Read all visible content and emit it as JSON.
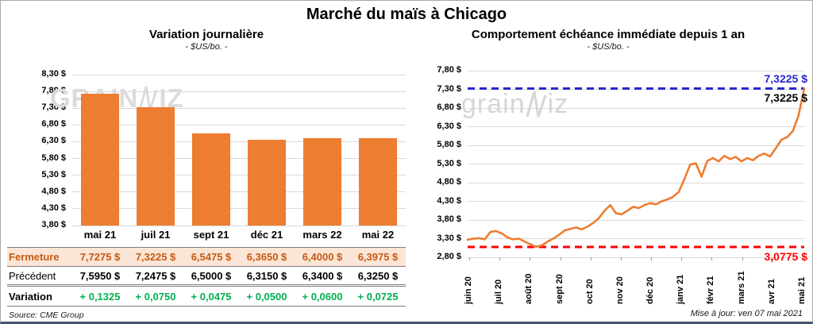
{
  "header": {
    "title": "Marché du maïs à Chicago"
  },
  "watermarks": {
    "left": {
      "part1": "GRAIN",
      "part2": "IZ"
    },
    "right": {
      "part1": "grain",
      "part2": "iz"
    }
  },
  "left_chart": {
    "title": "Variation journalière",
    "subtitle": "- $US/bo. -"
  },
  "right_chart": {
    "title": "Comportement échéance immédiate depuis 1 an",
    "subtitle": "- $US/bo. -",
    "high_label": "7,3225 $",
    "last_value_label": "7,3225 $",
    "low_label": "3,0775 $"
  },
  "table": {
    "columns": [
      "mai 21",
      "juil 21",
      "sept 21",
      "déc 21",
      "mars 22",
      "mai 22"
    ],
    "rows": [
      {
        "label": "Fermeture",
        "key": "fermeture",
        "values": [
          "7,7275 $",
          "7,3225 $",
          "6,5475 $",
          "6,3650 $",
          "6,4000 $",
          "6,3975 $"
        ]
      },
      {
        "label": "Précédent",
        "key": "precedent",
        "values": [
          "7,5950 $",
          "7,2475 $",
          "6,5000 $",
          "6,3150 $",
          "6,3400 $",
          "6,3250 $"
        ]
      },
      {
        "label": "Variation",
        "key": "variation",
        "values": [
          "+ 0,1325",
          "+ 0,0750",
          "+ 0,0475",
          "+ 0,0500",
          "+ 0,0600",
          "+ 0,0725"
        ]
      }
    ],
    "source": "Source: CME Group"
  },
  "footer": {
    "updated": "Mise à jour: ven 07 mai 2021"
  },
  "colors": {
    "orange": "#ED7D31",
    "fermeture_text": "#C55A11",
    "fermeture_bg": "#FBE5D6",
    "variation_green": "#00B050",
    "ref_blue": "#2828CD",
    "ref_red": "#FF0000",
    "grid": "#D9D9D9"
  },
  "chart_data": [
    {
      "type": "bar",
      "title": "Variation journalière",
      "subtitle": "- $US/bo. -",
      "unit": "$US/bo.",
      "categories": [
        "mai 21",
        "juil 21",
        "sept 21",
        "déc 21",
        "mars 22",
        "mai 22"
      ],
      "values": [
        7.7275,
        7.3225,
        6.5475,
        6.365,
        6.4,
        6.3975
      ],
      "ylim": [
        3.8,
        8.3
      ],
      "ytick_step": 0.5,
      "ytick_labels": [
        "8,30 $",
        "7,80 $",
        "7,30 $",
        "6,80 $",
        "6,30 $",
        "5,80 $",
        "5,30 $",
        "4,80 $",
        "4,30 $",
        "3,80 $"
      ],
      "grid": true,
      "bar_color": "#ED7D31",
      "xlabel": "",
      "ylabel": ""
    },
    {
      "type": "line",
      "title": "Comportement échéance immédiate depuis 1 an",
      "subtitle": "- $US/bo. -",
      "unit": "$US/bo.",
      "x_tick_labels": [
        "juin 20",
        "juil 20",
        "août 20",
        "sept 20",
        "oct 20",
        "nov 20",
        "déc 20",
        "janv 21",
        "févr 21",
        "mars 21",
        "avr 21",
        "mai 21"
      ],
      "values": [
        3.27,
        3.3,
        3.31,
        3.28,
        3.48,
        3.5,
        3.44,
        3.33,
        3.28,
        3.3,
        3.22,
        3.15,
        3.08,
        3.12,
        3.22,
        3.3,
        3.4,
        3.52,
        3.56,
        3.6,
        3.55,
        3.62,
        3.72,
        3.85,
        4.05,
        4.2,
        3.98,
        3.95,
        4.05,
        4.15,
        4.12,
        4.2,
        4.25,
        4.22,
        4.3,
        4.35,
        4.42,
        4.55,
        4.9,
        5.28,
        5.32,
        4.96,
        5.38,
        5.46,
        5.37,
        5.52,
        5.43,
        5.49,
        5.37,
        5.46,
        5.4,
        5.52,
        5.58,
        5.5,
        5.72,
        5.95,
        6.02,
        6.18,
        6.6,
        7.3225
      ],
      "ylim": [
        2.8,
        7.8
      ],
      "ytick_step": 0.5,
      "ytick_labels": [
        "7,80 $",
        "7,30 $",
        "6,80 $",
        "6,30 $",
        "5,80 $",
        "5,30 $",
        "4,80 $",
        "4,30 $",
        "3,80 $",
        "3,30 $",
        "2,80 $"
      ],
      "grid": true,
      "line_color": "#ED7D31",
      "ref_lines": [
        {
          "value": 7.3225,
          "label": "7,3225 $",
          "color": "#2828CD",
          "style": "dashed"
        },
        {
          "value": 3.0775,
          "label": "3,0775 $",
          "color": "#FF0000",
          "style": "dashed"
        }
      ],
      "last_point_label": "7,3225 $",
      "legend": "none"
    }
  ]
}
